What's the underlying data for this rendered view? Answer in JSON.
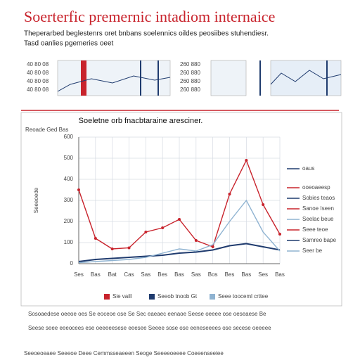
{
  "header": {
    "title": "Soerterfic premernic intadiom internaice",
    "subtitle": "Theperarbed beglestenrs oret bnbans soelennics oildes peosiibes stuhendiesr.",
    "note": "Tasd oanlies pgemeries oeet"
  },
  "thumbnails": [
    {
      "labels": [
        "40 80 08",
        "40 80 08",
        "40 80 08",
        "40 80 08"
      ]
    },
    {
      "labels": [
        "260 880",
        "260 880",
        "260 880",
        "260 880"
      ]
    }
  ],
  "chart_data": {
    "type": "line",
    "title": "Soeletne orb fnacbtaraine aresciner.",
    "corner_label": "Reoade Ged Bas",
    "ylabel": "Seeeoede",
    "categories": [
      "Ses",
      "Bas",
      "Bat",
      "Cas",
      "Sas",
      "Bes",
      "Bas",
      "Sas",
      "Bos",
      "Bes",
      "Bas",
      "Ses",
      "Bas"
    ],
    "ylim": [
      0,
      600
    ],
    "yticks": [
      0,
      100,
      200,
      300,
      400,
      500,
      600
    ],
    "grid": true,
    "series": [
      {
        "name": "Sie vaill",
        "color": "#c8232c",
        "values": [
          350,
          120,
          70,
          75,
          150,
          170,
          210,
          110,
          80,
          330,
          490,
          280,
          140
        ]
      },
      {
        "name": "Seeob tnoob Gt",
        "color": "#1f3b6e",
        "values": [
          10,
          20,
          25,
          30,
          35,
          40,
          50,
          55,
          65,
          85,
          95,
          80,
          65
        ]
      },
      {
        "name": "Seee tooceml crttee",
        "color": "#8fb3d1",
        "values": [
          5,
          10,
          15,
          20,
          30,
          50,
          70,
          60,
          90,
          200,
          300,
          150,
          60
        ]
      }
    ],
    "side_legend": [
      {
        "label": "oaus",
        "color": "#1f3b6e"
      },
      {
        "label": "ooeoaeesp",
        "color": "#c8232c"
      },
      {
        "label": "Sobies teaos",
        "color": "#1f3b6e"
      },
      {
        "label": "Sanoe Iseen",
        "color": "#c8232c"
      },
      {
        "label": "Seelac beue",
        "color": "#8fb3d1"
      },
      {
        "label": "Seee teoe",
        "color": "#c8232c"
      },
      {
        "label": "Samreo bape",
        "color": "#1f3b6e"
      },
      {
        "label": "Seer be",
        "color": "#8fb3d1"
      }
    ]
  },
  "footer": {
    "line1": "Sosoaedese oeeoe oes Se eoceoe ose Se Sec eaeaec eenaoe Seese oeeee ose oeseaese Be",
    "line2": "Seese seee eeeocees ese oeeeeesese eeesee Seeee sose ose eeneseeees ose secese oeeeee",
    "line3": "Seeoeoeaee Seeeoe Deee Cemmsseaeeen Seoge Seeeeoeeee Coeeenseeiee"
  }
}
